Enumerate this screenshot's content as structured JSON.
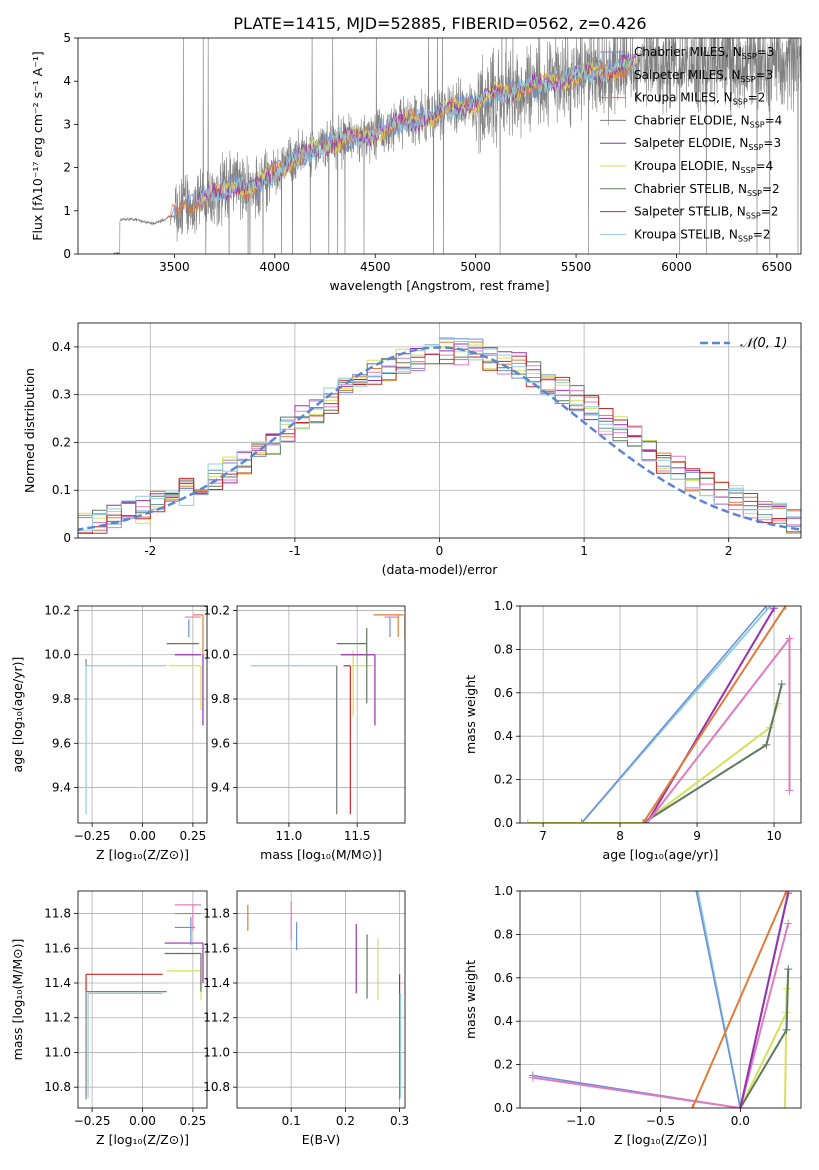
{
  "figure_title": "PLATE=1415, MJD=52885, FIBERID=0562, z=0.426",
  "colors": {
    "chabrier_miles": "#6a8fd8",
    "salpeter_miles": "#e07b39",
    "kroupa_miles": "#e07b39",
    "chabrier_elodie": "#808080",
    "salpeter_elodie": "#9b2fae",
    "kroupa_elodie": "#d4e157",
    "chabrier_stelib": "#5c7a5c",
    "salpeter_stelib": "#c62828",
    "kroupa_stelib": "#90cfd8",
    "gaussian": "#5b86d6",
    "pink": "#e07bbf"
  },
  "chart_data": [
    {
      "id": "spectrum",
      "type": "line",
      "title": "PLATE=1415, MJD=52885, FIBERID=0562, z=0.426",
      "xlabel": "wavelength [Angstrom, rest frame]",
      "ylabel": "Flux [fλ10⁻¹⁷ erg cm⁻² s⁻¹ A⁻¹]",
      "xlim": [
        3020,
        6620
      ],
      "ylim": [
        0,
        5
      ],
      "xticks": [
        3500,
        4000,
        4500,
        5000,
        5500,
        6000,
        6500
      ],
      "yticks": [
        0,
        1,
        2,
        3,
        4,
        5
      ],
      "legend_position": "top-right",
      "series": [
        {
          "name": "Chabrier MILES, N_SSP=3",
          "color": "#6a8fd8"
        },
        {
          "name": "Salpeter MILES, N_SSP=3",
          "color": "#e07b39"
        },
        {
          "name": "Kroupa MILES, N_SSP=2",
          "color": "#e07b39"
        },
        {
          "name": "Chabrier ELODIE, N_SSP=4",
          "color": "#808080"
        },
        {
          "name": "Salpeter ELODIE, N_SSP=3",
          "color": "#9b2fae"
        },
        {
          "name": "Kroupa ELODIE, N_SSP=4",
          "color": "#d4e157"
        },
        {
          "name": "Chabrier STELIB, N_SSP=2",
          "color": "#5c7a5c"
        },
        {
          "name": "Salpeter STELIB, N_SSP=2",
          "color": "#c62828"
        },
        {
          "name": "Kroupa STELIB, N_SSP=2",
          "color": "#90cfd8"
        }
      ],
      "continuum": {
        "x": [
          3200,
          3230,
          3300,
          3400,
          3500,
          3600,
          3700,
          3800,
          3900,
          4000,
          4100,
          4200,
          4300,
          4400,
          4500,
          4600,
          4700,
          4800,
          4900,
          5000,
          5100,
          5200,
          5300,
          5400,
          5500,
          5600,
          5700,
          5800
        ],
        "y": [
          0.0,
          0.8,
          0.8,
          0.7,
          0.9,
          1.2,
          1.4,
          1.6,
          1.5,
          1.9,
          2.2,
          2.4,
          2.6,
          2.7,
          2.8,
          3.0,
          3.1,
          3.2,
          3.4,
          3.5,
          3.7,
          3.8,
          3.9,
          4.0,
          4.1,
          4.2,
          4.3,
          4.4
        ]
      }
    },
    {
      "id": "residuals",
      "type": "bar",
      "xlabel": "(data-model)/error",
      "ylabel": "Normed distribution",
      "xlim": [
        -2.5,
        2.5
      ],
      "ylim": [
        0,
        0.45
      ],
      "xticks": [
        -2,
        -1,
        0,
        1,
        2
      ],
      "yticks": [
        0.0,
        0.1,
        0.2,
        0.3,
        0.4
      ],
      "legend": "𝒩(0, 1)",
      "legend_position": "top-right",
      "gaussian": {
        "mu": 0,
        "sigma": 1
      }
    },
    {
      "id": "age_vs_Z",
      "type": "line",
      "xlabel": "Z [log₁₀(Z/Z⊙)]",
      "ylabel": "age  [log₁₀(age/yr)]",
      "xlim": [
        -0.32,
        0.32
      ],
      "ylim": [
        9.24,
        10.22
      ],
      "xticks": [
        -0.25,
        0.0,
        0.25
      ],
      "xticklabels": [
        "−0.25",
        "0.00",
        "0.25"
      ],
      "yticks": [
        9.4,
        9.6,
        9.8,
        10.0,
        10.2
      ],
      "yticklabels": [
        "9.4",
        "9.6",
        "9.8",
        "10.0",
        "10.2"
      ]
    },
    {
      "id": "age_vs_mass",
      "type": "line",
      "xlabel": "mass [log₁₀(M/M⊙)]",
      "xlim": [
        10.62,
        11.85
      ],
      "ylim": [
        9.24,
        10.22
      ],
      "xticks": [
        11.0,
        11.5
      ],
      "xticklabels": [
        "11.0",
        "11.5"
      ],
      "yticks": [
        9.4,
        9.6,
        9.8,
        10.0,
        10.2
      ],
      "yticklabels": [
        "9.4",
        "9.6",
        "9.8",
        "10.0",
        "10.2"
      ]
    },
    {
      "id": "massweight_vs_age",
      "type": "line",
      "xlabel": "age  [log₁₀(age/yr)]",
      "ylabel": "mass weight",
      "xlim": [
        6.7,
        10.35
      ],
      "ylim": [
        0,
        1
      ],
      "xticks": [
        7,
        8,
        9,
        10
      ],
      "xticklabels": [
        "7",
        "8",
        "9",
        "10"
      ],
      "yticks": [
        0.0,
        0.2,
        0.4,
        0.6,
        0.8,
        1.0
      ],
      "yticklabels": [
        "0.0",
        "0.2",
        "0.4",
        "0.6",
        "0.8",
        "1.0"
      ]
    },
    {
      "id": "mass_vs_Z",
      "type": "line",
      "xlabel": "Z [log₁₀(Z/Z⊙)]",
      "ylabel": "mass [log₁₀(M/M⊙)]",
      "xlim": [
        -0.32,
        0.32
      ],
      "ylim": [
        10.68,
        11.93
      ],
      "xticks": [
        -0.25,
        0.0,
        0.25
      ],
      "xticklabels": [
        "−0.25",
        "0.00",
        "0.25"
      ],
      "yticks": [
        10.8,
        11.0,
        11.2,
        11.4,
        11.6,
        11.8
      ],
      "yticklabels": [
        "10.8",
        "11.0",
        "11.2",
        "11.4",
        "11.6",
        "11.8"
      ]
    },
    {
      "id": "mass_vs_ebv",
      "type": "line",
      "xlabel": "E(B-V)",
      "xlim": [
        0.0,
        0.31
      ],
      "ylim": [
        10.68,
        11.93
      ],
      "xticks": [
        0.1,
        0.2,
        0.3
      ],
      "xticklabels": [
        "0.1",
        "0.2",
        "0.3"
      ],
      "yticks": [
        10.8,
        11.0,
        11.2,
        11.4,
        11.6,
        11.8
      ],
      "yticklabels": [
        "10.8",
        "11.0",
        "11.2",
        "11.4",
        "11.6",
        "11.8"
      ]
    },
    {
      "id": "massweight_vs_Z",
      "type": "line",
      "xlabel": "Z [log₁₀(Z/Z⊙)]",
      "ylabel": "mass weight",
      "xlim": [
        -1.38,
        0.38
      ],
      "ylim": [
        0,
        1
      ],
      "xticks": [
        -1.0,
        -0.5,
        0.0
      ],
      "xticklabels": [
        "−1.0",
        "−0.5",
        "0.0"
      ],
      "yticks": [
        0.0,
        0.2,
        0.4,
        0.6,
        0.8,
        1.0
      ],
      "yticklabels": [
        "0.0",
        "0.2",
        "0.4",
        "0.6",
        "0.8",
        "1.0"
      ]
    }
  ]
}
